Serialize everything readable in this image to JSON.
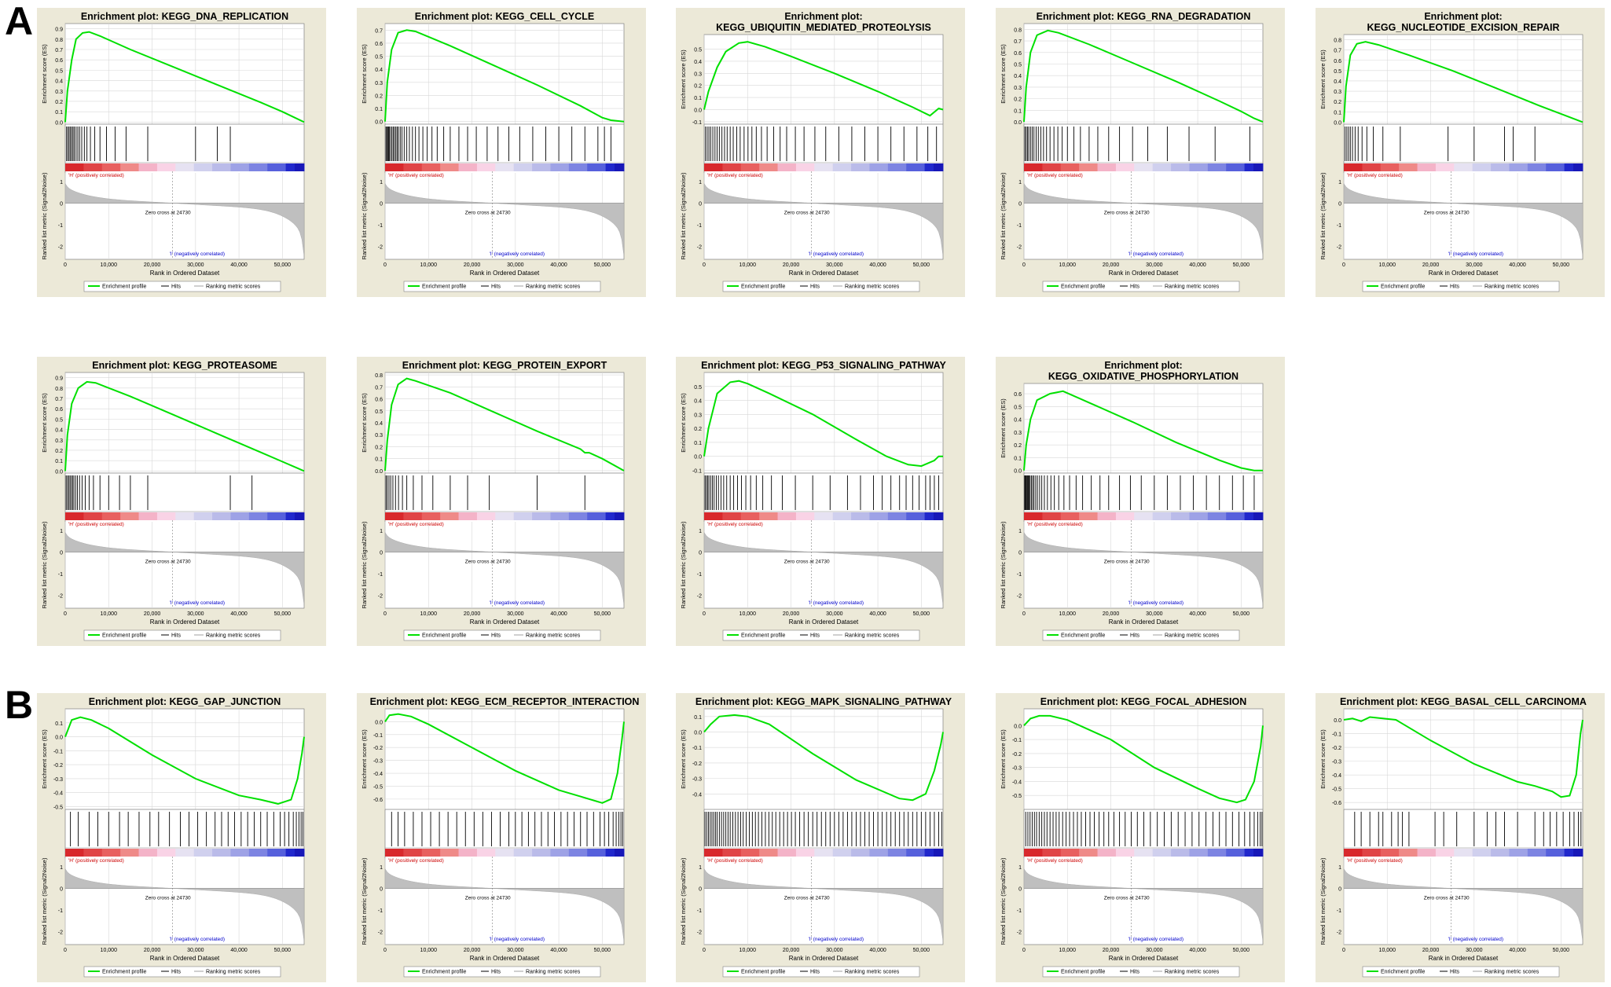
{
  "figure": {
    "panels": [
      {
        "letter": "A"
      },
      {
        "letter": "B"
      }
    ]
  },
  "common": {
    "ylabel_es": "Enrichment score (ES)",
    "ylabel_metric": "Ranked list metric (Signal2Noise)",
    "xlabel": "Rank in Ordered Dataset",
    "x_ticks": [
      0,
      10000,
      20000,
      30000,
      40000,
      50000
    ],
    "x_tick_labels": [
      "0",
      "10,000",
      "20,000",
      "30,000",
      "40,000",
      "50,000"
    ],
    "metric_ticks": [
      1,
      0,
      -1,
      -2
    ],
    "metric_ylim": [
      -2.6,
      1.4
    ],
    "pos_label": "'H' (positively correlated)",
    "neg_label": "'I' (negatively correlated)",
    "zero_cross_label": "Zero cross at 24730",
    "zero_cross": 24730,
    "legend": [
      "Enrichment profile",
      "Hits",
      "Ranking metric scores"
    ],
    "colors": {
      "panel_bg": "#ece9d8",
      "es_line": "#00e000",
      "hits": "#000000",
      "metric_fill": "#bfbfbf",
      "pos_text": "#cc0000",
      "neg_text": "#0000cc",
      "grid": "#d8d8d8"
    }
  },
  "chart_data": [
    {
      "type": "line",
      "title": "Enrichment plot: KEGG_DNA_REPLICATION",
      "xlim": [
        0,
        55000
      ],
      "ylim": [
        -0.02,
        0.95
      ],
      "yticks": [
        0.0,
        0.1,
        0.2,
        0.3,
        0.4,
        0.5,
        0.6,
        0.7,
        0.8,
        0.9
      ],
      "x": [
        0,
        500,
        1500,
        2500,
        4000,
        5500,
        8000,
        15000,
        25000,
        35000,
        45000,
        50000,
        55000
      ],
      "y": [
        0,
        0.3,
        0.6,
        0.8,
        0.86,
        0.87,
        0.83,
        0.7,
        0.53,
        0.36,
        0.19,
        0.1,
        0
      ],
      "hits": [
        300,
        600,
        900,
        1200,
        1500,
        1800,
        2100,
        2500,
        2900,
        3300,
        3800,
        4400,
        5000,
        5800,
        6800,
        8000,
        9500,
        11500,
        14000,
        19000,
        30000,
        35000,
        38000
      ]
    },
    {
      "type": "line",
      "title": "Enrichment plot: KEGG_CELL_CYCLE",
      "xlim": [
        0,
        55000
      ],
      "ylim": [
        -0.02,
        0.75
      ],
      "yticks": [
        0.0,
        0.1,
        0.2,
        0.3,
        0.4,
        0.5,
        0.6,
        0.7
      ],
      "x": [
        0,
        500,
        1500,
        3000,
        5000,
        7000,
        15000,
        25000,
        35000,
        45000,
        50000,
        52000,
        55000
      ],
      "y": [
        0,
        0.3,
        0.55,
        0.68,
        0.7,
        0.69,
        0.58,
        0.43,
        0.28,
        0.12,
        0.03,
        0.01,
        0
      ],
      "hits": [
        200,
        400,
        600,
        800,
        1000,
        1300,
        1600,
        1900,
        2200,
        2500,
        2800,
        3100,
        3500,
        3900,
        4400,
        5000,
        5600,
        6300,
        7000,
        7800,
        8700,
        9700,
        10800,
        12000,
        13500,
        15000,
        17000,
        19000,
        21000,
        23500,
        26000,
        28500,
        31000,
        34000,
        37000,
        40000,
        43000,
        46000,
        49000,
        50500,
        52000
      ]
    },
    {
      "type": "line",
      "title": "Enrichment plot: KEGG_UBIQUITIN_MEDIATED_PROTEOLYSIS",
      "xlim": [
        0,
        55000
      ],
      "ylim": [
        -0.12,
        0.62
      ],
      "yticks": [
        -0.1,
        0.0,
        0.1,
        0.2,
        0.3,
        0.4,
        0.5
      ],
      "x": [
        0,
        1000,
        3000,
        5000,
        8000,
        10000,
        14000,
        20000,
        30000,
        40000,
        48000,
        52000,
        54000,
        55000
      ],
      "y": [
        0,
        0.15,
        0.35,
        0.48,
        0.55,
        0.56,
        0.52,
        0.44,
        0.3,
        0.15,
        0.02,
        -0.05,
        0.01,
        0
      ],
      "hits": [
        300,
        700,
        1100,
        1500,
        2000,
        2500,
        3000,
        3500,
        4100,
        4700,
        5300,
        6000,
        6700,
        7500,
        8300,
        9200,
        10100,
        11000,
        12000,
        13200,
        14500,
        16000,
        17500,
        19000,
        21000,
        23000,
        25500,
        28000,
        31000,
        34000,
        37000,
        40000,
        43000,
        46000,
        49000,
        51500,
        53500
      ]
    },
    {
      "type": "line",
      "title": "Enrichment plot: KEGG_RNA_DEGRADATION",
      "xlim": [
        0,
        55000
      ],
      "ylim": [
        -0.02,
        0.85
      ],
      "yticks": [
        0.0,
        0.1,
        0.2,
        0.3,
        0.4,
        0.5,
        0.6,
        0.7,
        0.8
      ],
      "x": [
        0,
        500,
        1500,
        3000,
        5500,
        8000,
        15000,
        25000,
        35000,
        45000,
        50000,
        53000,
        55000
      ],
      "y": [
        0,
        0.3,
        0.6,
        0.75,
        0.79,
        0.77,
        0.67,
        0.51,
        0.35,
        0.18,
        0.09,
        0.03,
        0
      ],
      "hits": [
        200,
        500,
        800,
        1100,
        1500,
        1900,
        2300,
        2800,
        3300,
        3900,
        4500,
        5200,
        6000,
        6900,
        7800,
        8800,
        10000,
        11500,
        13000,
        15000,
        17000,
        19500,
        22000,
        25000,
        28500,
        33000,
        38000,
        44000,
        52000
      ]
    },
    {
      "type": "line",
      "title": "Enrichment plot: KEGG_NUCLEOTIDE_EXCISION_REPAIR",
      "xlim": [
        0,
        55000
      ],
      "ylim": [
        -0.02,
        0.85
      ],
      "yticks": [
        0.0,
        0.1,
        0.2,
        0.3,
        0.4,
        0.5,
        0.6,
        0.7,
        0.8
      ],
      "x": [
        0,
        500,
        1500,
        3000,
        5000,
        8000,
        15000,
        25000,
        35000,
        45000,
        50000,
        55000
      ],
      "y": [
        0,
        0.35,
        0.65,
        0.76,
        0.78,
        0.75,
        0.65,
        0.5,
        0.33,
        0.16,
        0.08,
        0
      ],
      "hits": [
        300,
        700,
        1100,
        1500,
        2000,
        2600,
        3300,
        4200,
        5300,
        6800,
        9000,
        13000,
        24000,
        30000,
        37000,
        39000,
        44000
      ]
    },
    {
      "type": "line",
      "title": "Enrichment plot: KEGG_PROTEASOME",
      "xlim": [
        0,
        55000
      ],
      "ylim": [
        -0.02,
        0.95
      ],
      "yticks": [
        0.0,
        0.1,
        0.2,
        0.3,
        0.4,
        0.5,
        0.6,
        0.7,
        0.8,
        0.9
      ],
      "x": [
        0,
        500,
        1500,
        3000,
        5000,
        7000,
        15000,
        25000,
        35000,
        45000,
        50000,
        55000
      ],
      "y": [
        0,
        0.35,
        0.65,
        0.8,
        0.86,
        0.85,
        0.72,
        0.54,
        0.36,
        0.18,
        0.09,
        0
      ],
      "hits": [
        200,
        500,
        800,
        1100,
        1400,
        1700,
        2000,
        2400,
        2800,
        3300,
        3900,
        4600,
        5500,
        6500,
        8000,
        10000,
        12500,
        15000,
        19000,
        38000,
        43000
      ]
    },
    {
      "type": "line",
      "title": "Enrichment plot: KEGG_PROTEIN_EXPORT",
      "xlim": [
        0,
        55000
      ],
      "ylim": [
        -0.02,
        0.82
      ],
      "yticks": [
        0.0,
        0.1,
        0.2,
        0.3,
        0.4,
        0.5,
        0.6,
        0.7,
        0.8
      ],
      "x": [
        0,
        500,
        1500,
        3000,
        5000,
        7000,
        15000,
        25000,
        35000,
        45000,
        46000,
        47000,
        50000,
        55000
      ],
      "y": [
        0,
        0.25,
        0.55,
        0.72,
        0.77,
        0.75,
        0.65,
        0.49,
        0.33,
        0.18,
        0.15,
        0.15,
        0.1,
        0
      ],
      "hits": [
        200,
        500,
        900,
        1300,
        1800,
        2400,
        3100,
        4000,
        5000,
        6500,
        8500,
        11000,
        15000,
        19000,
        24000,
        35000,
        46000
      ]
    },
    {
      "type": "line",
      "title": "Enrichment plot: KEGG_P53_SIGNALING_PATHWAY",
      "xlim": [
        0,
        55000
      ],
      "ylim": [
        -0.12,
        0.6
      ],
      "yticks": [
        -0.1,
        0.0,
        0.1,
        0.2,
        0.3,
        0.4,
        0.5
      ],
      "x": [
        0,
        1000,
        3000,
        6000,
        8000,
        10000,
        15000,
        25000,
        35000,
        42000,
        47000,
        50000,
        53000,
        54000,
        55000
      ],
      "y": [
        0,
        0.2,
        0.45,
        0.53,
        0.54,
        0.52,
        0.45,
        0.3,
        0.12,
        0.0,
        -0.06,
        -0.07,
        -0.03,
        0.0,
        0.0
      ],
      "hits": [
        200,
        500,
        800,
        1100,
        1500,
        1900,
        2300,
        2800,
        3300,
        3900,
        4500,
        5200,
        6000,
        6800,
        7700,
        8600,
        9600,
        10700,
        12000,
        13500,
        15500,
        18000,
        21000,
        25000,
        29000,
        33000,
        36000,
        39000,
        41000,
        43000,
        45000,
        46500,
        48000,
        49500,
        51000,
        52000,
        53000,
        54000
      ]
    },
    {
      "type": "line",
      "title": "Enrichment plot: KEGG_OXIDATIVE_PHOSPHORYLATION",
      "xlim": [
        0,
        55000
      ],
      "ylim": [
        -0.02,
        0.68
      ],
      "yticks": [
        0.0,
        0.1,
        0.2,
        0.3,
        0.4,
        0.5,
        0.6
      ],
      "x": [
        0,
        500,
        1500,
        3000,
        6000,
        9000,
        15000,
        25000,
        35000,
        45000,
        50000,
        53000,
        55000
      ],
      "y": [
        0,
        0.2,
        0.4,
        0.55,
        0.6,
        0.62,
        0.53,
        0.38,
        0.22,
        0.08,
        0.02,
        0.0,
        0.0
      ],
      "hits": [
        150,
        300,
        450,
        600,
        800,
        1000,
        1200,
        1400,
        1700,
        2000,
        2300,
        2700,
        3100,
        3600,
        4100,
        4700,
        5400,
        6200,
        7000,
        8000,
        9200,
        10500,
        12000,
        13500,
        15500,
        17500,
        19500,
        22000,
        24500,
        27000,
        30000,
        33000,
        36000,
        39000,
        42000,
        45000,
        48000,
        50500,
        53000
      ]
    },
    {
      "type": "line",
      "title": "Enrichment plot: KEGG_GAP_JUNCTION",
      "xlim": [
        0,
        55000
      ],
      "ylim": [
        -0.52,
        0.2
      ],
      "yticks": [
        -0.5,
        -0.4,
        -0.3,
        -0.2,
        -0.1,
        0.0,
        0.1
      ],
      "x": [
        0,
        1500,
        3500,
        6000,
        10000,
        20000,
        30000,
        40000,
        45000,
        49000,
        52000,
        53500,
        54500,
        55000
      ],
      "y": [
        0,
        0.12,
        0.14,
        0.12,
        0.06,
        -0.13,
        -0.3,
        -0.42,
        -0.45,
        -0.48,
        -0.45,
        -0.3,
        -0.12,
        0
      ],
      "hits": [
        1200,
        3000,
        5500,
        7500,
        10000,
        12500,
        14500,
        17000,
        19500,
        21500,
        24000,
        26500,
        28500,
        30500,
        32500,
        34500,
        36000,
        37500,
        39000,
        40500,
        42000,
        43500,
        45000,
        46500,
        48000,
        49500,
        50500,
        51500,
        52500,
        53200,
        53800,
        54300,
        54700
      ]
    },
    {
      "type": "line",
      "title": "Enrichment plot: KEGG_ECM_RECEPTOR_INTERACTION",
      "xlim": [
        0,
        55000
      ],
      "ylim": [
        -0.68,
        0.1
      ],
      "yticks": [
        -0.6,
        -0.5,
        -0.4,
        -0.3,
        -0.2,
        -0.1,
        0.0
      ],
      "x": [
        0,
        1000,
        3000,
        6000,
        10000,
        20000,
        30000,
        40000,
        45000,
        50000,
        52000,
        53500,
        54500,
        55000
      ],
      "y": [
        0,
        0.05,
        0.06,
        0.04,
        -0.02,
        -0.2,
        -0.38,
        -0.53,
        -0.58,
        -0.63,
        -0.6,
        -0.4,
        -0.15,
        0
      ],
      "hits": [
        1500,
        3000,
        4500,
        6500,
        8500,
        10500,
        12500,
        14500,
        16500,
        18500,
        20500,
        22500,
        24500,
        26500,
        28500,
        30000,
        31500,
        33000,
        34500,
        36000,
        37500,
        39000,
        40500,
        42000,
        43500,
        45000,
        46500,
        48000,
        49500,
        50500,
        51500,
        52500,
        53200,
        53800,
        54300,
        54700
      ]
    },
    {
      "type": "line",
      "title": "Enrichment plot: KEGG_MAPK_SIGNALING_PATHWAY",
      "xlim": [
        0,
        55000
      ],
      "ylim": [
        -0.5,
        0.15
      ],
      "yticks": [
        -0.4,
        -0.3,
        -0.2,
        -0.1,
        0.0,
        0.1
      ],
      "x": [
        0,
        1500,
        3500,
        7000,
        10000,
        15000,
        25000,
        35000,
        45000,
        48000,
        51000,
        53000,
        54500,
        55000
      ],
      "y": [
        0,
        0.05,
        0.1,
        0.11,
        0.1,
        0.05,
        -0.14,
        -0.31,
        -0.43,
        -0.44,
        -0.4,
        -0.25,
        -0.08,
        0
      ],
      "hits": [
        200,
        600,
        1000,
        1400,
        1800,
        2200,
        2600,
        3000,
        3500,
        4000,
        4500,
        5000,
        5500,
        6000,
        6600,
        7200,
        7800,
        8400,
        9000,
        9700,
        10400,
        11100,
        11800,
        12500,
        13300,
        14100,
        14900,
        15700,
        16500,
        17400,
        18300,
        19200,
        20100,
        21000,
        22000,
        23000,
        24000,
        25000,
        26000,
        27000,
        28000,
        29000,
        30000,
        31000,
        32000,
        33000,
        34000,
        35000,
        36000,
        37000,
        38000,
        39000,
        40000,
        41000,
        42000,
        43000,
        44000,
        45000,
        46000,
        47000,
        48000,
        49000,
        50000,
        51000,
        52000,
        53000,
        54000,
        54700
      ]
    },
    {
      "type": "line",
      "title": "Enrichment plot: KEGG_FOCAL_ADHESION",
      "xlim": [
        0,
        55000
      ],
      "ylim": [
        -0.6,
        0.12
      ],
      "yticks": [
        -0.5,
        -0.4,
        -0.3,
        -0.2,
        -0.1,
        0.0
      ],
      "x": [
        0,
        1500,
        3500,
        6000,
        10000,
        20000,
        30000,
        40000,
        45000,
        49000,
        51000,
        53000,
        54500,
        55000
      ],
      "y": [
        0,
        0.05,
        0.07,
        0.07,
        0.04,
        -0.1,
        -0.3,
        -0.45,
        -0.52,
        -0.55,
        -0.53,
        -0.4,
        -0.15,
        0
      ],
      "hits": [
        400,
        900,
        1400,
        1900,
        2400,
        2900,
        3500,
        4100,
        4700,
        5300,
        6000,
        6700,
        7400,
        8100,
        8900,
        9700,
        10500,
        11400,
        12300,
        13200,
        14200,
        15200,
        16200,
        17300,
        18400,
        19500,
        20700,
        22000,
        23300,
        24700,
        26100,
        27600,
        29100,
        30700,
        32300,
        33900,
        35500,
        37100,
        38700,
        40300,
        41900,
        43500,
        45000,
        46500,
        48000,
        49500,
        50800,
        52000,
        53000,
        53800,
        54400,
        54800
      ]
    },
    {
      "type": "line",
      "title": "Enrichment plot: KEGG_BASAL_CELL_CARCINOMA",
      "xlim": [
        0,
        55000
      ],
      "ylim": [
        -0.65,
        0.08
      ],
      "yticks": [
        -0.6,
        -0.5,
        -0.4,
        -0.3,
        -0.2,
        -0.1,
        0.0
      ],
      "x": [
        0,
        2000,
        4000,
        6000,
        9000,
        12000,
        20000,
        30000,
        40000,
        44000,
        48000,
        50000,
        52000,
        53500,
        54500,
        55000
      ],
      "y": [
        0,
        0.01,
        -0.01,
        0.02,
        0.01,
        0.0,
        -0.15,
        -0.32,
        -0.45,
        -0.48,
        -0.52,
        -0.56,
        -0.55,
        -0.4,
        -0.1,
        0
      ],
      "hits": [
        2500,
        4000,
        6000,
        8000,
        9000,
        11000,
        12500,
        13500,
        15000,
        21000,
        23000,
        26000,
        30000,
        33000,
        35000,
        37000,
        40000,
        44000,
        46000,
        47500,
        49000,
        50500,
        52000,
        53000,
        54000,
        54600
      ]
    }
  ]
}
